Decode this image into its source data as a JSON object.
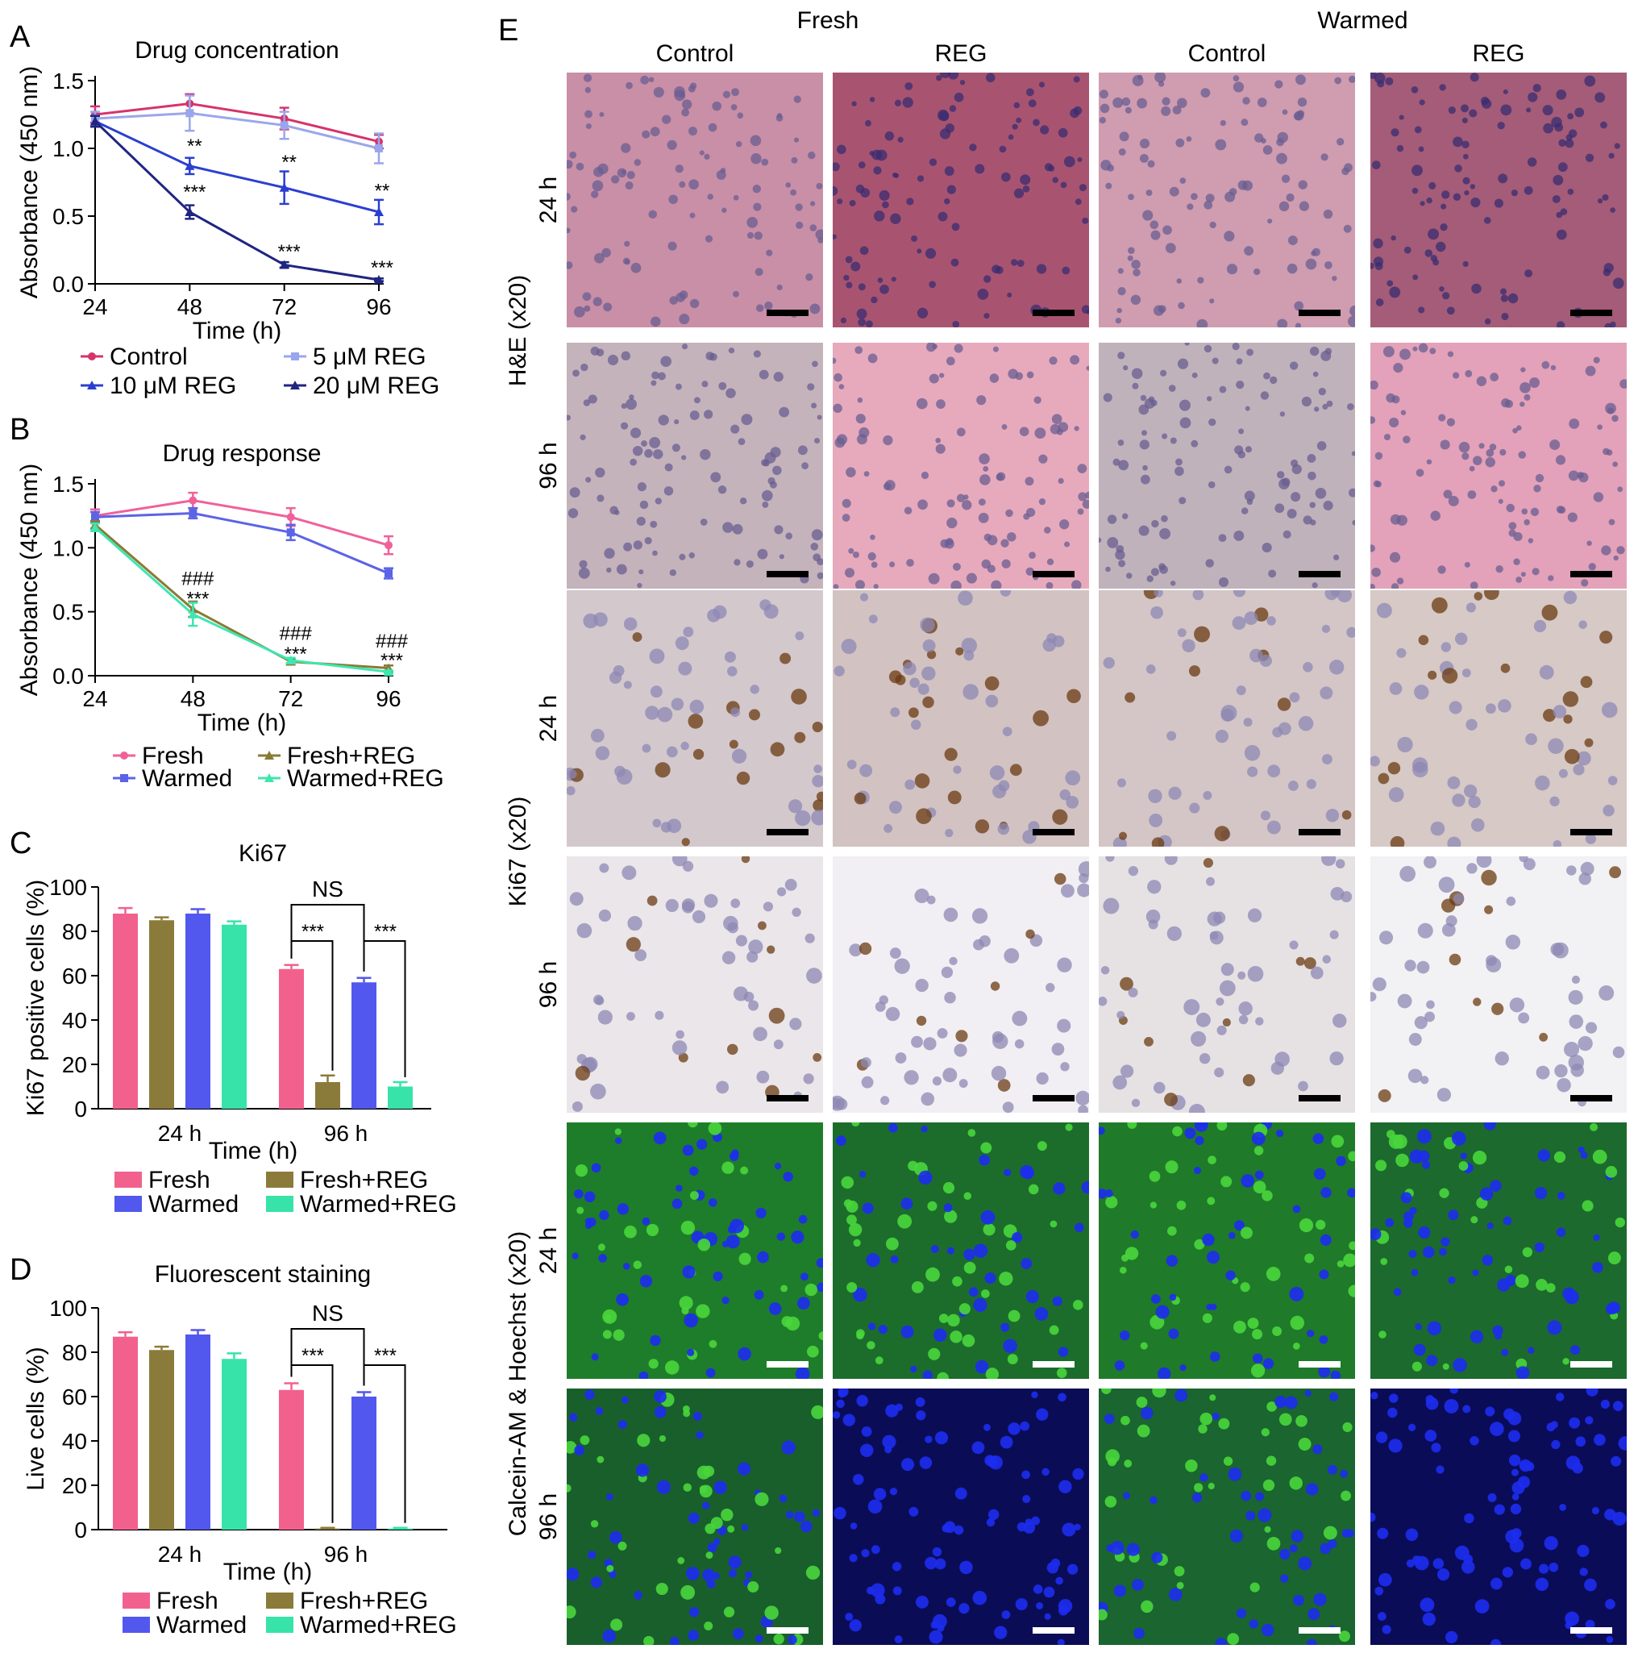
{
  "panel_letters": [
    "A",
    "B",
    "C",
    "D",
    "E"
  ],
  "chart_data": [
    {
      "id": "A",
      "type": "line",
      "title": "Drug concentration",
      "xlabel": "Time (h)",
      "ylabel": "Absorbance (450 nm)",
      "x": [
        24,
        48,
        72,
        96
      ],
      "xticks": [
        "24",
        "48",
        "72",
        "96"
      ],
      "yticks": [
        "0.0",
        "0.5",
        "1.0",
        "1.5"
      ],
      "ylim": [
        0,
        1.5
      ],
      "series": [
        {
          "name": "Control",
          "color": "#d6336c",
          "marker": "circle",
          "values": [
            1.25,
            1.33,
            1.22,
            1.05
          ],
          "errors": [
            0.06,
            0.07,
            0.08,
            0.05
          ]
        },
        {
          "name": "5 μM REG",
          "color": "#9aa6ec",
          "marker": "square",
          "values": [
            1.22,
            1.26,
            1.17,
            1.0
          ],
          "errors": [
            0.05,
            0.13,
            0.1,
            0.11
          ]
        },
        {
          "name": "10 μM REG",
          "color": "#2b3fcf",
          "marker": "triangle",
          "values": [
            1.2,
            0.87,
            0.71,
            0.53
          ],
          "errors": [
            0.04,
            0.06,
            0.12,
            0.09
          ]
        },
        {
          "name": "20 μM REG",
          "color": "#1f2580",
          "marker": "triangle",
          "values": [
            1.2,
            0.53,
            0.14,
            0.03
          ],
          "errors": [
            0.04,
            0.05,
            0.02,
            0.01
          ]
        }
      ],
      "annotations": [
        {
          "x": 48,
          "y": 0.97,
          "text": "**"
        },
        {
          "x": 72,
          "y": 0.85,
          "text": "**"
        },
        {
          "x": 96,
          "y": 0.64,
          "text": "**"
        },
        {
          "x": 48,
          "y": 0.63,
          "text": "***"
        },
        {
          "x": 72,
          "y": 0.19,
          "text": "***"
        },
        {
          "x": 96,
          "y": 0.07,
          "text": "***"
        }
      ],
      "legend": [
        [
          "Control",
          "5 μM REG"
        ],
        [
          "10 μM REG",
          "20 μM REG"
        ]
      ]
    },
    {
      "id": "B",
      "type": "line",
      "title": "Drug response",
      "xlabel": "Time (h)",
      "ylabel": "Absorbance (450 nm)",
      "x": [
        24,
        48,
        72,
        96
      ],
      "xticks": [
        "24",
        "48",
        "72",
        "96"
      ],
      "yticks": [
        "0.0",
        "0.5",
        "1.0",
        "1.5"
      ],
      "ylim": [
        0,
        1.5
      ],
      "series": [
        {
          "name": "Fresh",
          "color": "#f0619a",
          "marker": "circle",
          "values": [
            1.25,
            1.37,
            1.24,
            1.02
          ],
          "errors": [
            0.05,
            0.06,
            0.07,
            0.07
          ]
        },
        {
          "name": "Warmed",
          "color": "#5b63e6",
          "marker": "square",
          "values": [
            1.24,
            1.27,
            1.12,
            0.8
          ],
          "errors": [
            0.04,
            0.04,
            0.06,
            0.04
          ]
        },
        {
          "name": "Fresh+REG",
          "color": "#8a7a35",
          "marker": "triangle",
          "values": [
            1.18,
            0.52,
            0.11,
            0.06
          ],
          "errors": [
            0.03,
            0.06,
            0.02,
            0.02
          ]
        },
        {
          "name": "Warmed+REG",
          "color": "#3ee6b0",
          "marker": "triangle",
          "values": [
            1.16,
            0.48,
            0.12,
            0.03
          ],
          "errors": [
            0.03,
            0.09,
            0.02,
            0.01
          ]
        }
      ],
      "annotations": [
        {
          "x": 48,
          "y": 0.71,
          "text": "###"
        },
        {
          "x": 48,
          "y": 0.55,
          "text": "***"
        },
        {
          "x": 72,
          "y": 0.28,
          "text": "###"
        },
        {
          "x": 72,
          "y": 0.12,
          "text": "***"
        },
        {
          "x": 96,
          "y": 0.22,
          "text": "###"
        },
        {
          "x": 96,
          "y": 0.07,
          "text": "***"
        }
      ],
      "legend": [
        [
          "Fresh",
          "Fresh+REG"
        ],
        [
          "Warmed",
          "Warmed+REG"
        ]
      ]
    },
    {
      "id": "C",
      "type": "bar",
      "title": "Ki67",
      "xlabel": "Time (h)",
      "ylabel": "Ki67 positive cells (%)",
      "categories": [
        "24 h",
        "96 h"
      ],
      "yticks": [
        "0",
        "20",
        "40",
        "60",
        "80",
        "100"
      ],
      "ylim": [
        0,
        100
      ],
      "series": [
        {
          "name": "Fresh",
          "color": "#f2618e",
          "values": [
            88,
            63
          ],
          "errors": [
            2.5,
            1.8
          ]
        },
        {
          "name": "Fresh+REG",
          "color": "#8b7b3a",
          "values": [
            85,
            12
          ],
          "errors": [
            1.3,
            3.0
          ]
        },
        {
          "name": "Warmed",
          "color": "#5257ee",
          "values": [
            88,
            57
          ],
          "errors": [
            2.0,
            2.0
          ]
        },
        {
          "name": "Warmed+REG",
          "color": "#37e3a8",
          "values": [
            83,
            10
          ],
          "errors": [
            1.5,
            2.0
          ]
        }
      ],
      "significance": {
        "ns": "NS",
        "stars": "***"
      },
      "legend": [
        [
          "Fresh",
          "Fresh+REG"
        ],
        [
          "Warmed",
          "Warmed+REG"
        ]
      ]
    },
    {
      "id": "D",
      "type": "bar",
      "title": "Fluorescent staining",
      "xlabel": "Time (h)",
      "ylabel": "Live cells (%)",
      "categories": [
        "24 h",
        "96 h"
      ],
      "yticks": [
        "0",
        "20",
        "40",
        "60",
        "80",
        "100"
      ],
      "ylim": [
        0,
        100
      ],
      "series": [
        {
          "name": "Fresh",
          "color": "#f2618e",
          "values": [
            87,
            63
          ],
          "errors": [
            2.0,
            3.0
          ]
        },
        {
          "name": "Fresh+REG",
          "color": "#8b7b3a",
          "values": [
            81,
            0.5
          ],
          "errors": [
            1.5,
            0.3
          ]
        },
        {
          "name": "Warmed",
          "color": "#5257ee",
          "values": [
            88,
            60
          ],
          "errors": [
            2.0,
            2.0
          ]
        },
        {
          "name": "Warmed+REG",
          "color": "#37e3a8",
          "values": [
            77,
            0.5
          ],
          "errors": [
            2.5,
            0.3
          ]
        }
      ],
      "significance": {
        "ns": "NS",
        "stars": "***"
      },
      "legend": [
        [
          "Fresh",
          "Fresh+REG"
        ],
        [
          "Warmed",
          "Warmed+REG"
        ]
      ]
    }
  ],
  "panel_e": {
    "group_headers": [
      "Fresh",
      "Warmed"
    ],
    "column_headers": [
      "Control",
      "REG",
      "Control",
      "REG"
    ],
    "row_labels": [
      "24 h",
      "96 h",
      "24 h",
      "96 h",
      "24 h",
      "96 h"
    ],
    "stain_labels": [
      "H&E (x20)",
      "Ki67 (x20)",
      "Calcein-AM & Hoechst (x20)"
    ],
    "tiles": [
      [
        "#c98fa6",
        "#a85470",
        "#cf9cb0",
        "#a45c78"
      ],
      [
        "#c4b3ba",
        "#e7aabd",
        "#c0b2ba",
        "#e3a2b9"
      ],
      [
        "#d3c8cc",
        "#d2c3c2",
        "#d4c6c6",
        "#d6c9c6"
      ],
      [
        "#ebe6e9",
        "#f1eff3",
        "#e6e2e4",
        "#f2f1f4"
      ],
      [
        "#1e7d2a",
        "#1c6d2c",
        "#1f7a2a",
        "#1c6a2e"
      ],
      [
        "#195f2c",
        "#0a0d55",
        "#1a6530",
        "#0a0c58"
      ]
    ]
  }
}
